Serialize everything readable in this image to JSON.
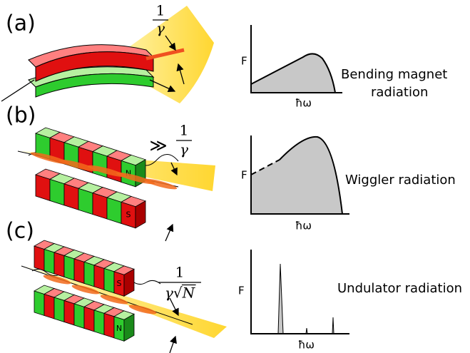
{
  "panels": [
    {
      "label": "(a)",
      "angle": {
        "numerator": "1",
        "denominator": "γ"
      },
      "plot": {
        "y_label": "F",
        "x_label": "ħω"
      },
      "caption": [
        "Bending magnet",
        "radiation"
      ]
    },
    {
      "label": "(b)",
      "angle": {
        "prefix": "≫",
        "numerator": "1",
        "denominator": "γ"
      },
      "magnets": {
        "top": "N",
        "bottom": "S"
      },
      "plot": {
        "y_label": "F",
        "x_label": "ħω"
      },
      "caption": [
        "Wiggler radiation"
      ]
    },
    {
      "label": "(c)",
      "angle": {
        "numerator": "1",
        "denominator": "γ√N"
      },
      "magnets": {
        "top": "S",
        "bottom": "N"
      },
      "plot": {
        "y_label": "F",
        "x_label": "ħω"
      },
      "caption": [
        "Undulator radiation"
      ]
    }
  ]
}
